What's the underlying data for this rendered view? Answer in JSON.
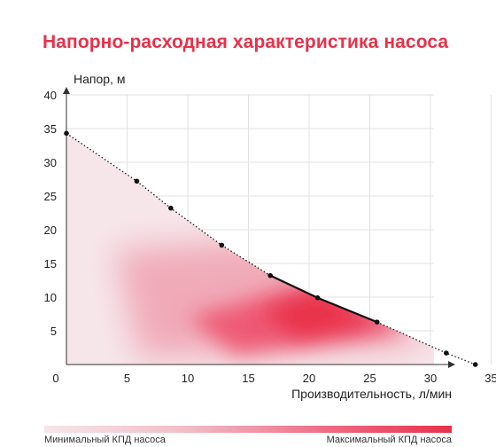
{
  "chart_data": {
    "type": "line",
    "title": "Напорно-расходная характеристика насоса",
    "xlabel": "Производительность, л/мин",
    "ylabel": "Напор, м",
    "xlim": [
      0,
      37
    ],
    "ylim": [
      0,
      40
    ],
    "x_ticks": [
      "0",
      "5",
      "10",
      "15",
      "20",
      "25",
      "30",
      "35"
    ],
    "y_ticks": [
      "5",
      "10",
      "15",
      "20",
      "25",
      "30",
      "35",
      "40"
    ],
    "grid": true,
    "series": [
      {
        "line_style": "dotted",
        "x": [
          0,
          5.8,
          8.6,
          12.8,
          16.8,
          20.7,
          25.6,
          31.3,
          33.7
        ],
        "y": [
          34.3,
          27.2,
          23.2,
          17.7,
          13.2,
          9.9,
          6.3,
          1.7,
          0
        ]
      }
    ],
    "highlight_segment": {
      "x": [
        16.8,
        20.7,
        25.6
      ],
      "y": [
        13.2,
        9.9,
        6.3
      ]
    },
    "colors": {
      "accent": "#e8314a",
      "light": "#f6e6ea"
    },
    "legend": {
      "min_label": "Минимальный КПД насоса",
      "max_label": "Максимальный КПД насоса"
    }
  }
}
